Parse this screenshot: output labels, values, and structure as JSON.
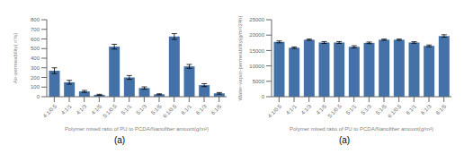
{
  "chart_data": [
    {
      "type": "bar",
      "categories": [
        "4:1/0.5",
        "4:1/1",
        "4:1/3",
        "4:1/5",
        "5:1/0.5",
        "5:1/1",
        "5:1/3",
        "5:1/5",
        "6:1/0.5",
        "6:1/1",
        "6:1/3",
        "6:1/5"
      ],
      "values": [
        270,
        150,
        55,
        20,
        520,
        200,
        90,
        25,
        625,
        315,
        120,
        35
      ],
      "errors": [
        30,
        20,
        10,
        5,
        25,
        20,
        12,
        5,
        30,
        20,
        15,
        8
      ],
      "color": "#4472a8",
      "ylabel": "Air-permeability(㎥/s)",
      "xlabel": "Polymer mixed ratio of PU to PCDA/Nanofiber amount(g/m²)",
      "ylim": [
        0,
        800
      ],
      "yticks": [
        0,
        100,
        200,
        300,
        400,
        500,
        600,
        700,
        800
      ],
      "grid": false,
      "annotations": [
        "(a)"
      ]
    },
    {
      "type": "bar",
      "categories": [
        "4:1/0.5",
        "4:1/1",
        "4:1/3",
        "4:1/5",
        "5:1/0.5",
        "5:1/1",
        "5:1/3",
        "5:1/5",
        "6:1/0.5",
        "6:1/1",
        "6:1/3",
        "6:1/5"
      ],
      "values": [
        17800,
        15900,
        18500,
        17600,
        17600,
        16200,
        17500,
        18500,
        18500,
        17600,
        16500,
        19700
      ],
      "errors": [
        300,
        250,
        200,
        300,
        300,
        350,
        250,
        200,
        200,
        250,
        300,
        400
      ],
      "color": "#4472a8",
      "ylabel": "Water-vapor-permeability(g/m²/24h)",
      "xlabel": "Polymer mixed ratio of PU to PCDA/Nanofiber amount(g/m²)",
      "ylim": [
        0,
        25000
      ],
      "yticks": [
        0,
        5000,
        10000,
        15000,
        20000,
        25000
      ],
      "grid": false,
      "annotations": [
        "(a)"
      ]
    }
  ]
}
